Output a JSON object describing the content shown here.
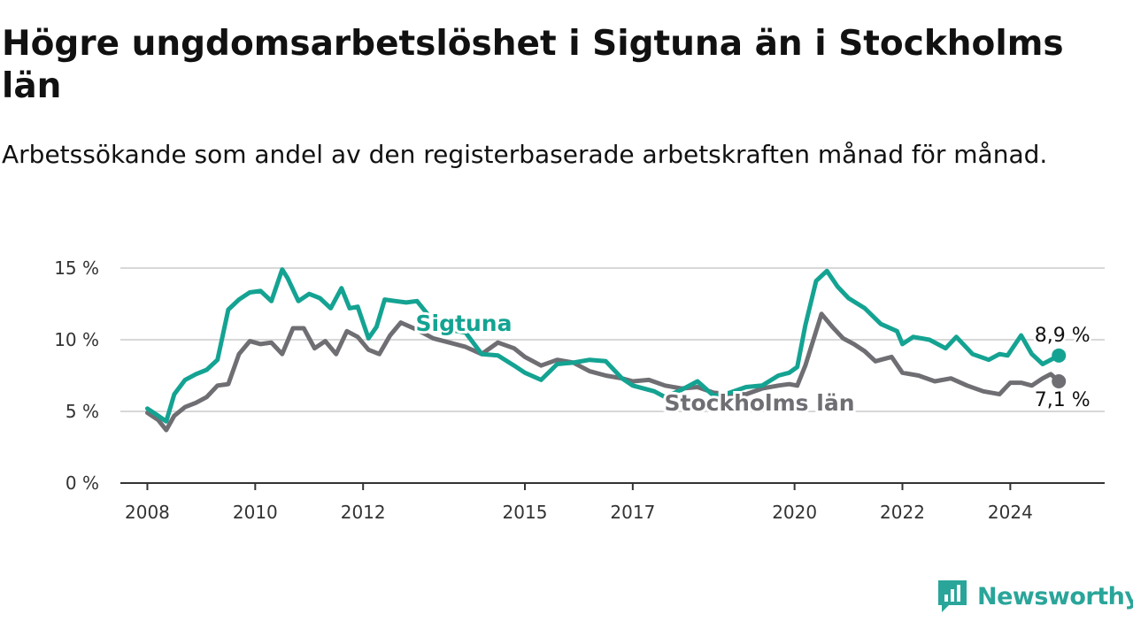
{
  "header": {
    "title": "Högre ungdomsarbetslöshet i Sigtuna än i Stockholms län",
    "subtitle": "Arbetssökande som andel av den registerbaserade arbetskraften månad för månad."
  },
  "brand": {
    "name": "Newsworthy",
    "icon": "newsworthy-logo-icon",
    "color": "#2aa59a"
  },
  "chart_data": {
    "type": "line",
    "title": "",
    "xlabel": "",
    "ylabel": "",
    "ylim": [
      0,
      15
    ],
    "xlim": [
      2007.5,
      2025.75
    ],
    "yticks": [
      {
        "value": 0,
        "label": "0 %"
      },
      {
        "value": 5,
        "label": "5 %"
      },
      {
        "value": 10,
        "label": "10 %"
      },
      {
        "value": 15,
        "label": "15 %"
      }
    ],
    "xticks": [
      {
        "value": 2008,
        "label": "2008"
      },
      {
        "value": 2010,
        "label": "2010"
      },
      {
        "value": 2012,
        "label": "2012"
      },
      {
        "value": 2015,
        "label": "2015"
      },
      {
        "value": 2017,
        "label": "2017"
      },
      {
        "value": 2020,
        "label": "2020"
      },
      {
        "value": 2022,
        "label": "2022"
      },
      {
        "value": 2024,
        "label": "2024"
      }
    ],
    "grid": true,
    "series": [
      {
        "name": "Sigtuna",
        "color": "#14a392",
        "end_label": "8,9 %",
        "x": [
          2008.0,
          2008.2,
          2008.35,
          2008.5,
          2008.7,
          2008.9,
          2009.1,
          2009.3,
          2009.5,
          2009.7,
          2009.9,
          2010.1,
          2010.3,
          2010.5,
          2010.6,
          2010.8,
          2011.0,
          2011.2,
          2011.4,
          2011.6,
          2011.75,
          2011.9,
          2012.1,
          2012.25,
          2012.4,
          2012.6,
          2012.8,
          2013.0,
          2013.3,
          2013.6,
          2013.9,
          2014.2,
          2014.5,
          2014.8,
          2015.0,
          2015.3,
          2015.6,
          2015.9,
          2016.2,
          2016.5,
          2016.8,
          2017.0,
          2017.2,
          2017.4,
          2017.6,
          2017.9,
          2018.2,
          2018.5,
          2018.8,
          2019.1,
          2019.4,
          2019.7,
          2019.9,
          2020.05,
          2020.2,
          2020.4,
          2020.6,
          2020.8,
          2021.0,
          2021.3,
          2021.6,
          2021.9,
          2022.0,
          2022.2,
          2022.5,
          2022.8,
          2023.0,
          2023.3,
          2023.6,
          2023.8,
          2023.95,
          2024.2,
          2024.4,
          2024.6,
          2024.8,
          2024.9
        ],
        "y": [
          5.2,
          4.7,
          4.3,
          6.2,
          7.2,
          7.6,
          7.9,
          8.6,
          12.1,
          12.8,
          13.3,
          13.4,
          12.7,
          14.9,
          14.3,
          12.7,
          13.2,
          12.9,
          12.2,
          13.6,
          12.2,
          12.3,
          10.1,
          10.9,
          12.8,
          12.7,
          12.6,
          12.7,
          11.3,
          10.7,
          10.5,
          9.0,
          8.9,
          8.2,
          7.7,
          7.2,
          8.3,
          8.4,
          8.6,
          8.5,
          7.3,
          6.8,
          6.6,
          6.4,
          6.0,
          6.5,
          7.1,
          6.1,
          6.3,
          6.7,
          6.8,
          7.5,
          7.7,
          8.1,
          11.0,
          14.1,
          14.8,
          13.7,
          12.9,
          12.2,
          11.1,
          10.6,
          9.7,
          10.2,
          10.0,
          9.4,
          10.2,
          9.0,
          8.6,
          9.0,
          8.9,
          10.3,
          9.0,
          8.3,
          8.7,
          8.9
        ]
      },
      {
        "name": "Stockholms län",
        "color": "#6f6e73",
        "end_label": "7,1 %",
        "x": [
          2008.0,
          2008.2,
          2008.35,
          2008.5,
          2008.7,
          2008.9,
          2009.1,
          2009.3,
          2009.5,
          2009.7,
          2009.9,
          2010.1,
          2010.3,
          2010.5,
          2010.7,
          2010.9,
          2011.1,
          2011.3,
          2011.5,
          2011.7,
          2011.9,
          2012.1,
          2012.3,
          2012.5,
          2012.7,
          2013.0,
          2013.3,
          2013.6,
          2013.9,
          2014.2,
          2014.5,
          2014.8,
          2015.0,
          2015.3,
          2015.6,
          2015.9,
          2016.2,
          2016.5,
          2016.8,
          2017.0,
          2017.3,
          2017.6,
          2017.9,
          2018.2,
          2018.5,
          2018.8,
          2019.1,
          2019.4,
          2019.7,
          2019.9,
          2020.05,
          2020.2,
          2020.4,
          2020.5,
          2020.7,
          2020.9,
          2021.1,
          2021.3,
          2021.5,
          2021.8,
          2022.0,
          2022.3,
          2022.6,
          2022.9,
          2023.2,
          2023.5,
          2023.8,
          2024.0,
          2024.2,
          2024.4,
          2024.6,
          2024.75,
          2024.9
        ],
        "y": [
          4.9,
          4.4,
          3.7,
          4.7,
          5.3,
          5.6,
          6.0,
          6.8,
          6.9,
          9.0,
          9.9,
          9.7,
          9.8,
          9.0,
          10.8,
          10.8,
          9.4,
          9.9,
          9.0,
          10.6,
          10.2,
          9.3,
          9.0,
          10.3,
          11.2,
          10.7,
          10.1,
          9.8,
          9.5,
          9.0,
          9.8,
          9.4,
          8.8,
          8.2,
          8.6,
          8.4,
          7.8,
          7.5,
          7.3,
          7.1,
          7.2,
          6.8,
          6.6,
          6.7,
          6.3,
          6.2,
          6.2,
          6.6,
          6.8,
          6.9,
          6.8,
          8.2,
          10.6,
          11.8,
          10.9,
          10.1,
          9.7,
          9.2,
          8.5,
          8.8,
          7.7,
          7.5,
          7.1,
          7.3,
          6.8,
          6.4,
          6.2,
          7.0,
          7.0,
          6.8,
          7.3,
          7.6,
          7.1
        ]
      }
    ]
  }
}
